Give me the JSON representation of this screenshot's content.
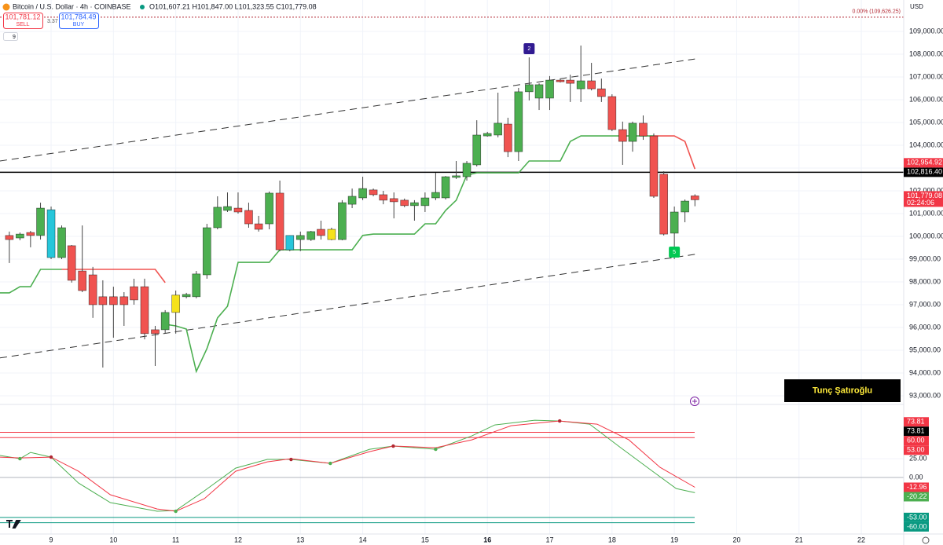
{
  "header": {
    "symbol": "Bitcoin / U.S. Dollar · 4h · COINBASE",
    "ohlc": "O101,607.21 H101,847.00 L101,323.55 C101,779.08",
    "sell_price": "101,781.12",
    "sell_label": "SELL",
    "spread": "3.37",
    "buy_price": "101,784.49",
    "buy_label": "BUY",
    "indicator_count": "9",
    "currency": "USD"
  },
  "watermark": "Tunç Şatıroğlu",
  "chart_data": [
    {
      "type": "candlestick",
      "xlim": [
        8.18,
        22.68
      ],
      "xticks": [
        9,
        10,
        11,
        12,
        13,
        14,
        15,
        16,
        17,
        18,
        19,
        20,
        21,
        22
      ],
      "bold_xticks": [
        16
      ],
      "ylim": [
        92620,
        110380
      ],
      "yticks": [
        {
          "value": 93000,
          "label": "93,000.00"
        },
        {
          "value": 94000,
          "label": "94,000.00"
        },
        {
          "value": 95000,
          "label": "95,000.00"
        },
        {
          "value": 96000,
          "label": "96,000.00"
        },
        {
          "value": 97000,
          "label": "97,000.00"
        },
        {
          "value": 98000,
          "label": "98,000.00"
        },
        {
          "value": 99000,
          "label": "99,000.00"
        },
        {
          "value": 100000,
          "label": "100,000.00"
        },
        {
          "value": 101000,
          "label": "101,000.00"
        },
        {
          "value": 102000,
          "label": "102,000.00"
        },
        {
          "value": 103000,
          "label": "103,000.00"
        },
        {
          "value": 104000,
          "label": "104,000.00"
        },
        {
          "value": 105000,
          "label": "105,000.00"
        },
        {
          "value": 106000,
          "label": "106,000.00"
        },
        {
          "value": 107000,
          "label": "107,000.00"
        },
        {
          "value": 108000,
          "label": "108,000.00"
        },
        {
          "value": 109000,
          "label": "109,000.00"
        }
      ],
      "grid": true,
      "candles": {
        "x": [
          8.33,
          8.5,
          8.67,
          8.83,
          9,
          9.17,
          9.33,
          9.5,
          9.67,
          9.83,
          10,
          10.17,
          10.33,
          10.5,
          10.67,
          10.83,
          11,
          11.17,
          11.33,
          11.5,
          11.67,
          11.83,
          12,
          12.17,
          12.33,
          12.5,
          12.67,
          12.83,
          13,
          13.17,
          13.33,
          13.5,
          13.67,
          13.83,
          14,
          14.17,
          14.33,
          14.5,
          14.67,
          14.83,
          15,
          15.17,
          15.33,
          15.5,
          15.67,
          15.83,
          16,
          16.17,
          16.33,
          16.5,
          16.67,
          16.83,
          17,
          17.17,
          17.33,
          17.5,
          17.67,
          17.83,
          18,
          18.17,
          18.33,
          18.5,
          18.67,
          18.83,
          19,
          19.17,
          19.33
        ],
        "open": [
          100040,
          99930,
          100170,
          100040,
          101170,
          99070,
          99590,
          98480,
          98310,
          97350,
          97350,
          97350,
          97790,
          97790,
          95900,
          95900,
          96660,
          97350,
          97350,
          98310,
          100380,
          101140,
          101240,
          101140,
          100550,
          100550,
          101900,
          99410,
          99860,
          99860,
          100310,
          99860,
          99860,
          101410,
          101690,
          102040,
          101830,
          101660,
          101590,
          101350,
          101350,
          101690,
          101690,
          102590,
          102620,
          103140,
          104410,
          104450,
          104930,
          103720,
          106350,
          106070,
          106070,
          106860,
          106860,
          106480,
          106830,
          106480,
          106140,
          104690,
          104170,
          104970,
          104410,
          102730,
          100140,
          101070,
          101607.21
        ],
        "high": [
          100210,
          100170,
          100240,
          101480,
          101310,
          100480,
          99620,
          100480,
          98660,
          98070,
          97790,
          97550,
          98140,
          98140,
          96070,
          96760,
          97620,
          97520,
          98480,
          100550,
          101760,
          101930,
          101930,
          101480,
          100900,
          101970,
          102450,
          100040,
          100210,
          100240,
          100690,
          100380,
          101590,
          102100,
          102620,
          102100,
          102000,
          101930,
          101660,
          101590,
          101930,
          102790,
          102650,
          103310,
          103310,
          105100,
          104590,
          106310,
          105210,
          106520,
          107860,
          106720,
          107040,
          106900,
          107100,
          108380,
          107620,
          106930,
          106240,
          105040,
          105040,
          105310,
          104520,
          102860,
          101310,
          101620,
          101847
        ],
        "low": [
          98830,
          99830,
          99520,
          99860,
          99000,
          99000,
          97970,
          97550,
          96420,
          94240,
          95550,
          96070,
          97000,
          95480,
          94310,
          95730,
          95730,
          97280,
          97280,
          98140,
          100310,
          101070,
          101000,
          100380,
          100210,
          100310,
          99350,
          99350,
          99350,
          99800,
          99860,
          99830,
          99830,
          101240,
          101590,
          101760,
          101410,
          100790,
          101280,
          100690,
          101070,
          101590,
          101620,
          102520,
          102450,
          103070,
          104380,
          104350,
          103480,
          103310,
          105970,
          105550,
          105550,
          106760,
          105900,
          105900,
          106410,
          105900,
          104620,
          103140,
          103720,
          104240,
          101690,
          100040,
          99000,
          100620,
          101323.55
        ],
        "close": [
          99860,
          100100,
          100040,
          101240,
          99070,
          100380,
          98070,
          97620,
          97000,
          97000,
          97000,
          97000,
          97210,
          95730,
          95730,
          96660,
          97420,
          97450,
          98350,
          100380,
          101280,
          101310,
          101070,
          100550,
          100310,
          101900,
          99410,
          100040,
          100040,
          100210,
          100040,
          100310,
          101480,
          101760,
          102100,
          101830,
          101590,
          101520,
          101350,
          101480,
          101690,
          101930,
          102620,
          102660,
          103210,
          104450,
          104520,
          104970,
          103720,
          106350,
          106660,
          106660,
          106860,
          106790,
          106720,
          106830,
          106480,
          106140,
          104690,
          104170,
          104970,
          104410,
          101760,
          100100,
          101070,
          101550,
          101779.08
        ],
        "colors": [
          "#f05350",
          "#4caf50",
          "#f05350",
          "#4caf50",
          "#26c6da",
          "#4caf50",
          "#f05350",
          "#f05350",
          "#f05350",
          "#f05350",
          "#f05350",
          "#f05350",
          "#f05350",
          "#f05350",
          "#f05350",
          "#4caf50",
          "#f5e21b",
          "#4caf50",
          "#4caf50",
          "#4caf50",
          "#4caf50",
          "#4caf50",
          "#f05350",
          "#f05350",
          "#f05350",
          "#4caf50",
          "#f05350",
          "#26c6da",
          "#4caf50",
          "#4caf50",
          "#f05350",
          "#f5e21b",
          "#4caf50",
          "#4caf50",
          "#4caf50",
          "#f05350",
          "#f05350",
          "#f05350",
          "#f05350",
          "#4caf50",
          "#4caf50",
          "#4caf50",
          "#4caf50",
          "#4caf50",
          "#4caf50",
          "#4caf50",
          "#4caf50",
          "#4caf50",
          "#f05350",
          "#4caf50",
          "#4caf50",
          "#4caf50",
          "#4caf50",
          "#f05350",
          "#f05350",
          "#4caf50",
          "#f05350",
          "#f05350",
          "#f05350",
          "#f05350",
          "#4caf50",
          "#f05350",
          "#f05350",
          "#f05350",
          "#4caf50",
          "#4caf50",
          "#f05350"
        ]
      },
      "lines": [
        {
          "color": "#4caf50",
          "x": [
            8.18,
            8.33,
            8.5,
            8.67,
            8.83,
            9,
            9.17
          ],
          "values": [
            97520,
            97520,
            97790,
            97790,
            98550,
            98550,
            98550
          ]
        },
        {
          "color": "#f05350",
          "x": [
            9.17,
            10.67,
            10.83
          ],
          "values": [
            98550,
            98550,
            97970
          ]
        },
        {
          "color": "#4caf50",
          "x": [
            10.83,
            11,
            11.17,
            11.33,
            11.5,
            11.67,
            11.83,
            12,
            12.5,
            12.67,
            13.83,
            14,
            14.17,
            14.83,
            15,
            15.17,
            15.33,
            15.5,
            15.67,
            15.83,
            16.5,
            16.67,
            17.17,
            17.33,
            17.5,
            18.67
          ],
          "values": [
            96140,
            96070,
            95930,
            94070,
            95070,
            96420,
            96930,
            98860,
            98860,
            99410,
            99410,
            100040,
            100100,
            100100,
            100550,
            100550,
            101140,
            101590,
            102690,
            102790,
            102790,
            103310,
            103310,
            104170,
            104410,
            104410
          ]
        },
        {
          "color": "#f05350",
          "x": [
            18.67,
            19,
            19.17,
            19.33
          ],
          "values": [
            104410,
            104410,
            104170,
            102960
          ]
        }
      ],
      "trendlines": [
        {
          "x": [
            8.18,
            19.33
          ],
          "values": [
            103310,
            107790
          ]
        },
        {
          "x": [
            8.18,
            19.33
          ],
          "values": [
            94660,
            99210
          ]
        }
      ],
      "hline": {
        "value": 102816.4,
        "color": "#000000"
      },
      "fib": {
        "value": 109626.25,
        "label": "0.00% (109,626.25)",
        "color": "#b22833"
      },
      "price_labels": [
        {
          "value": 102954.92,
          "label": "102,954.92",
          "color": "#f23645"
        },
        {
          "value": 102816.4,
          "label": "102,816.40",
          "color": "#000000"
        },
        {
          "value": 101779.08,
          "label": "101,779.08",
          "sublabel": "02:24:06",
          "color": "#f23645"
        }
      ],
      "signals": [
        {
          "x": 16.67,
          "value": 108240,
          "label": "2",
          "color": "#311b92"
        },
        {
          "x": 19,
          "value": 99310,
          "label": "5",
          "color": "#00c853"
        }
      ]
    },
    {
      "type": "line",
      "ylim": [
        -75,
        97
      ],
      "yticks": [
        {
          "value": 25,
          "label": "25.00"
        },
        {
          "value": 0,
          "label": "0.00"
        }
      ],
      "levels": [
        {
          "value": 60,
          "label": "60.00",
          "color": "#f23645"
        },
        {
          "value": 53,
          "label": "53.00",
          "color": "#f23645"
        },
        {
          "value": -53,
          "label": "-53.00",
          "color": "#089981"
        },
        {
          "value": -60,
          "label": "-60.00",
          "color": "#089981"
        }
      ],
      "axis_labels": [
        {
          "value": 73.81,
          "label": "73.81",
          "color": "#f23645"
        },
        {
          "value": 73.81,
          "label": "73.81",
          "color": "#000000"
        }
      ],
      "series": [
        {
          "color": "#4caf50",
          "last_label": "-20.22",
          "x": [
            8.18,
            8.5,
            8.67,
            9,
            9.44,
            9.95,
            10.7,
            11,
            11.46,
            11.96,
            12.47,
            12.85,
            13.48,
            14.11,
            14.49,
            15.17,
            15.75,
            16.12,
            16.76,
            17.16,
            17.64,
            18.14,
            18.65,
            19.03,
            19.33
          ],
          "values": [
            29.2,
            25,
            33.3,
            27.1,
            -7.3,
            -33.3,
            -44.8,
            -43.8,
            -17.7,
            12.5,
            24,
            24,
            18.8,
            37.5,
            41.7,
            37.5,
            55.2,
            69.8,
            76,
            75,
            70.8,
            39.6,
            8.3,
            -14.6,
            -20.22
          ]
        },
        {
          "color": "#f23645",
          "last_label": "-12.96",
          "x": [
            8.18,
            8.5,
            9,
            9.44,
            9.95,
            10.7,
            11,
            11.46,
            11.96,
            12.47,
            12.85,
            13.48,
            14.11,
            14.49,
            15.17,
            15.75,
            16.38,
            17.01,
            17.16,
            17.76,
            18.27,
            18.77,
            19.33
          ],
          "values": [
            27.1,
            26,
            27.1,
            8.3,
            -22.9,
            -41.7,
            -44.8,
            -28.1,
            8.3,
            20.8,
            25,
            18.8,
            34.4,
            41.7,
            39.6,
            50,
            68.8,
            74,
            75,
            70.8,
            50,
            13.5,
            -12.96
          ]
        }
      ],
      "crosses": {
        "x": [
          8.5,
          9,
          11,
          12.85,
          13.48,
          14.49,
          15.17,
          17.16
        ],
        "values": [
          25,
          27.1,
          -44.8,
          24,
          18.8,
          41.7,
          37.5,
          75
        ],
        "colors": [
          "#4caf50",
          "#b22833",
          "#4caf50",
          "#b22833",
          "#4caf50",
          "#b22833",
          "#4caf50",
          "#b22833"
        ]
      }
    }
  ]
}
